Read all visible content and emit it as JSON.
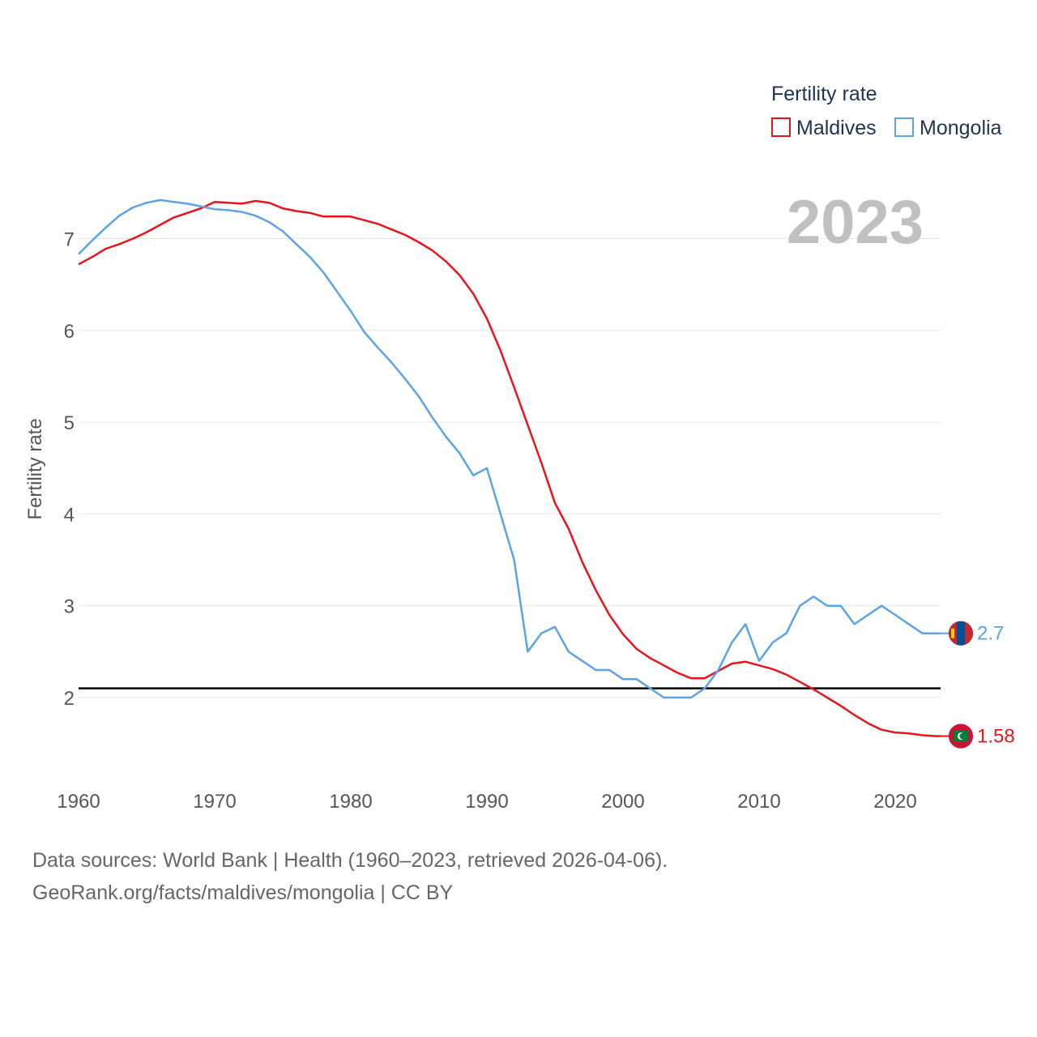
{
  "chart_data": {
    "type": "line",
    "title": "Fertility rate",
    "ylabel": "Fertility rate",
    "xlabel": "",
    "year_label": "2023",
    "xlim": [
      1960,
      2023
    ],
    "ylim": [
      1.1,
      7.75
    ],
    "x_ticks": [
      1960,
      1970,
      1980,
      1990,
      2000,
      2010,
      2020
    ],
    "y_ticks": [
      2,
      3,
      4,
      5,
      6,
      7
    ],
    "reference_line": 2.1,
    "x": [
      1960,
      1961,
      1962,
      1963,
      1964,
      1965,
      1966,
      1967,
      1968,
      1969,
      1970,
      1971,
      1972,
      1973,
      1974,
      1975,
      1976,
      1977,
      1978,
      1979,
      1980,
      1981,
      1982,
      1983,
      1984,
      1985,
      1986,
      1987,
      1988,
      1989,
      1990,
      1991,
      1992,
      1993,
      1994,
      1995,
      1996,
      1997,
      1998,
      1999,
      2000,
      2001,
      2002,
      2003,
      2004,
      2005,
      2006,
      2007,
      2008,
      2009,
      2010,
      2011,
      2012,
      2013,
      2014,
      2015,
      2016,
      2017,
      2018,
      2019,
      2020,
      2021,
      2022,
      2023
    ],
    "series": [
      {
        "name": "Maldives",
        "color": "#e8141b",
        "end_label": "1.58",
        "values": [
          6.72,
          6.8,
          6.89,
          6.94,
          7.0,
          7.07,
          7.15,
          7.23,
          7.28,
          7.33,
          7.4,
          7.39,
          7.38,
          7.41,
          7.39,
          7.33,
          7.3,
          7.28,
          7.24,
          7.24,
          7.24,
          7.2,
          7.16,
          7.1,
          7.04,
          6.96,
          6.87,
          6.75,
          6.6,
          6.4,
          6.13,
          5.78,
          5.38,
          4.97,
          4.56,
          4.12,
          3.84,
          3.48,
          3.17,
          2.9,
          2.69,
          2.53,
          2.43,
          2.35,
          2.27,
          2.21,
          2.21,
          2.29,
          2.37,
          2.39,
          2.35,
          2.31,
          2.25,
          2.17,
          2.09,
          2.0,
          1.91,
          1.81,
          1.72,
          1.65,
          1.62,
          1.61,
          1.59,
          1.58
        ]
      },
      {
        "name": "Mongolia",
        "color": "#5ba3e6",
        "end_label": "2.7",
        "values": [
          6.83,
          6.98,
          7.12,
          7.25,
          7.34,
          7.39,
          7.42,
          7.4,
          7.38,
          7.35,
          7.32,
          7.31,
          7.29,
          7.25,
          7.18,
          7.08,
          6.94,
          6.8,
          6.63,
          6.42,
          6.21,
          5.98,
          5.81,
          5.65,
          5.47,
          5.28,
          5.05,
          4.84,
          4.66,
          4.42,
          4.5,
          4.0,
          3.5,
          2.5,
          2.7,
          2.77,
          2.5,
          2.4,
          2.3,
          2.3,
          2.2,
          2.2,
          2.1,
          2.0,
          2.0,
          2.0,
          2.1,
          2.3,
          2.6,
          2.8,
          2.4,
          2.6,
          2.7,
          3.0,
          3.1,
          3.0,
          3.0,
          2.8,
          2.9,
          3.0,
          2.9,
          2.8,
          2.7,
          2.7
        ]
      }
    ]
  },
  "footer": {
    "line1": "Data sources: World Bank | Health (1960–2023, retrieved 2026-04-06).",
    "line2": "GeoRank.org/facts/maldives/mongolia | CC BY"
  }
}
